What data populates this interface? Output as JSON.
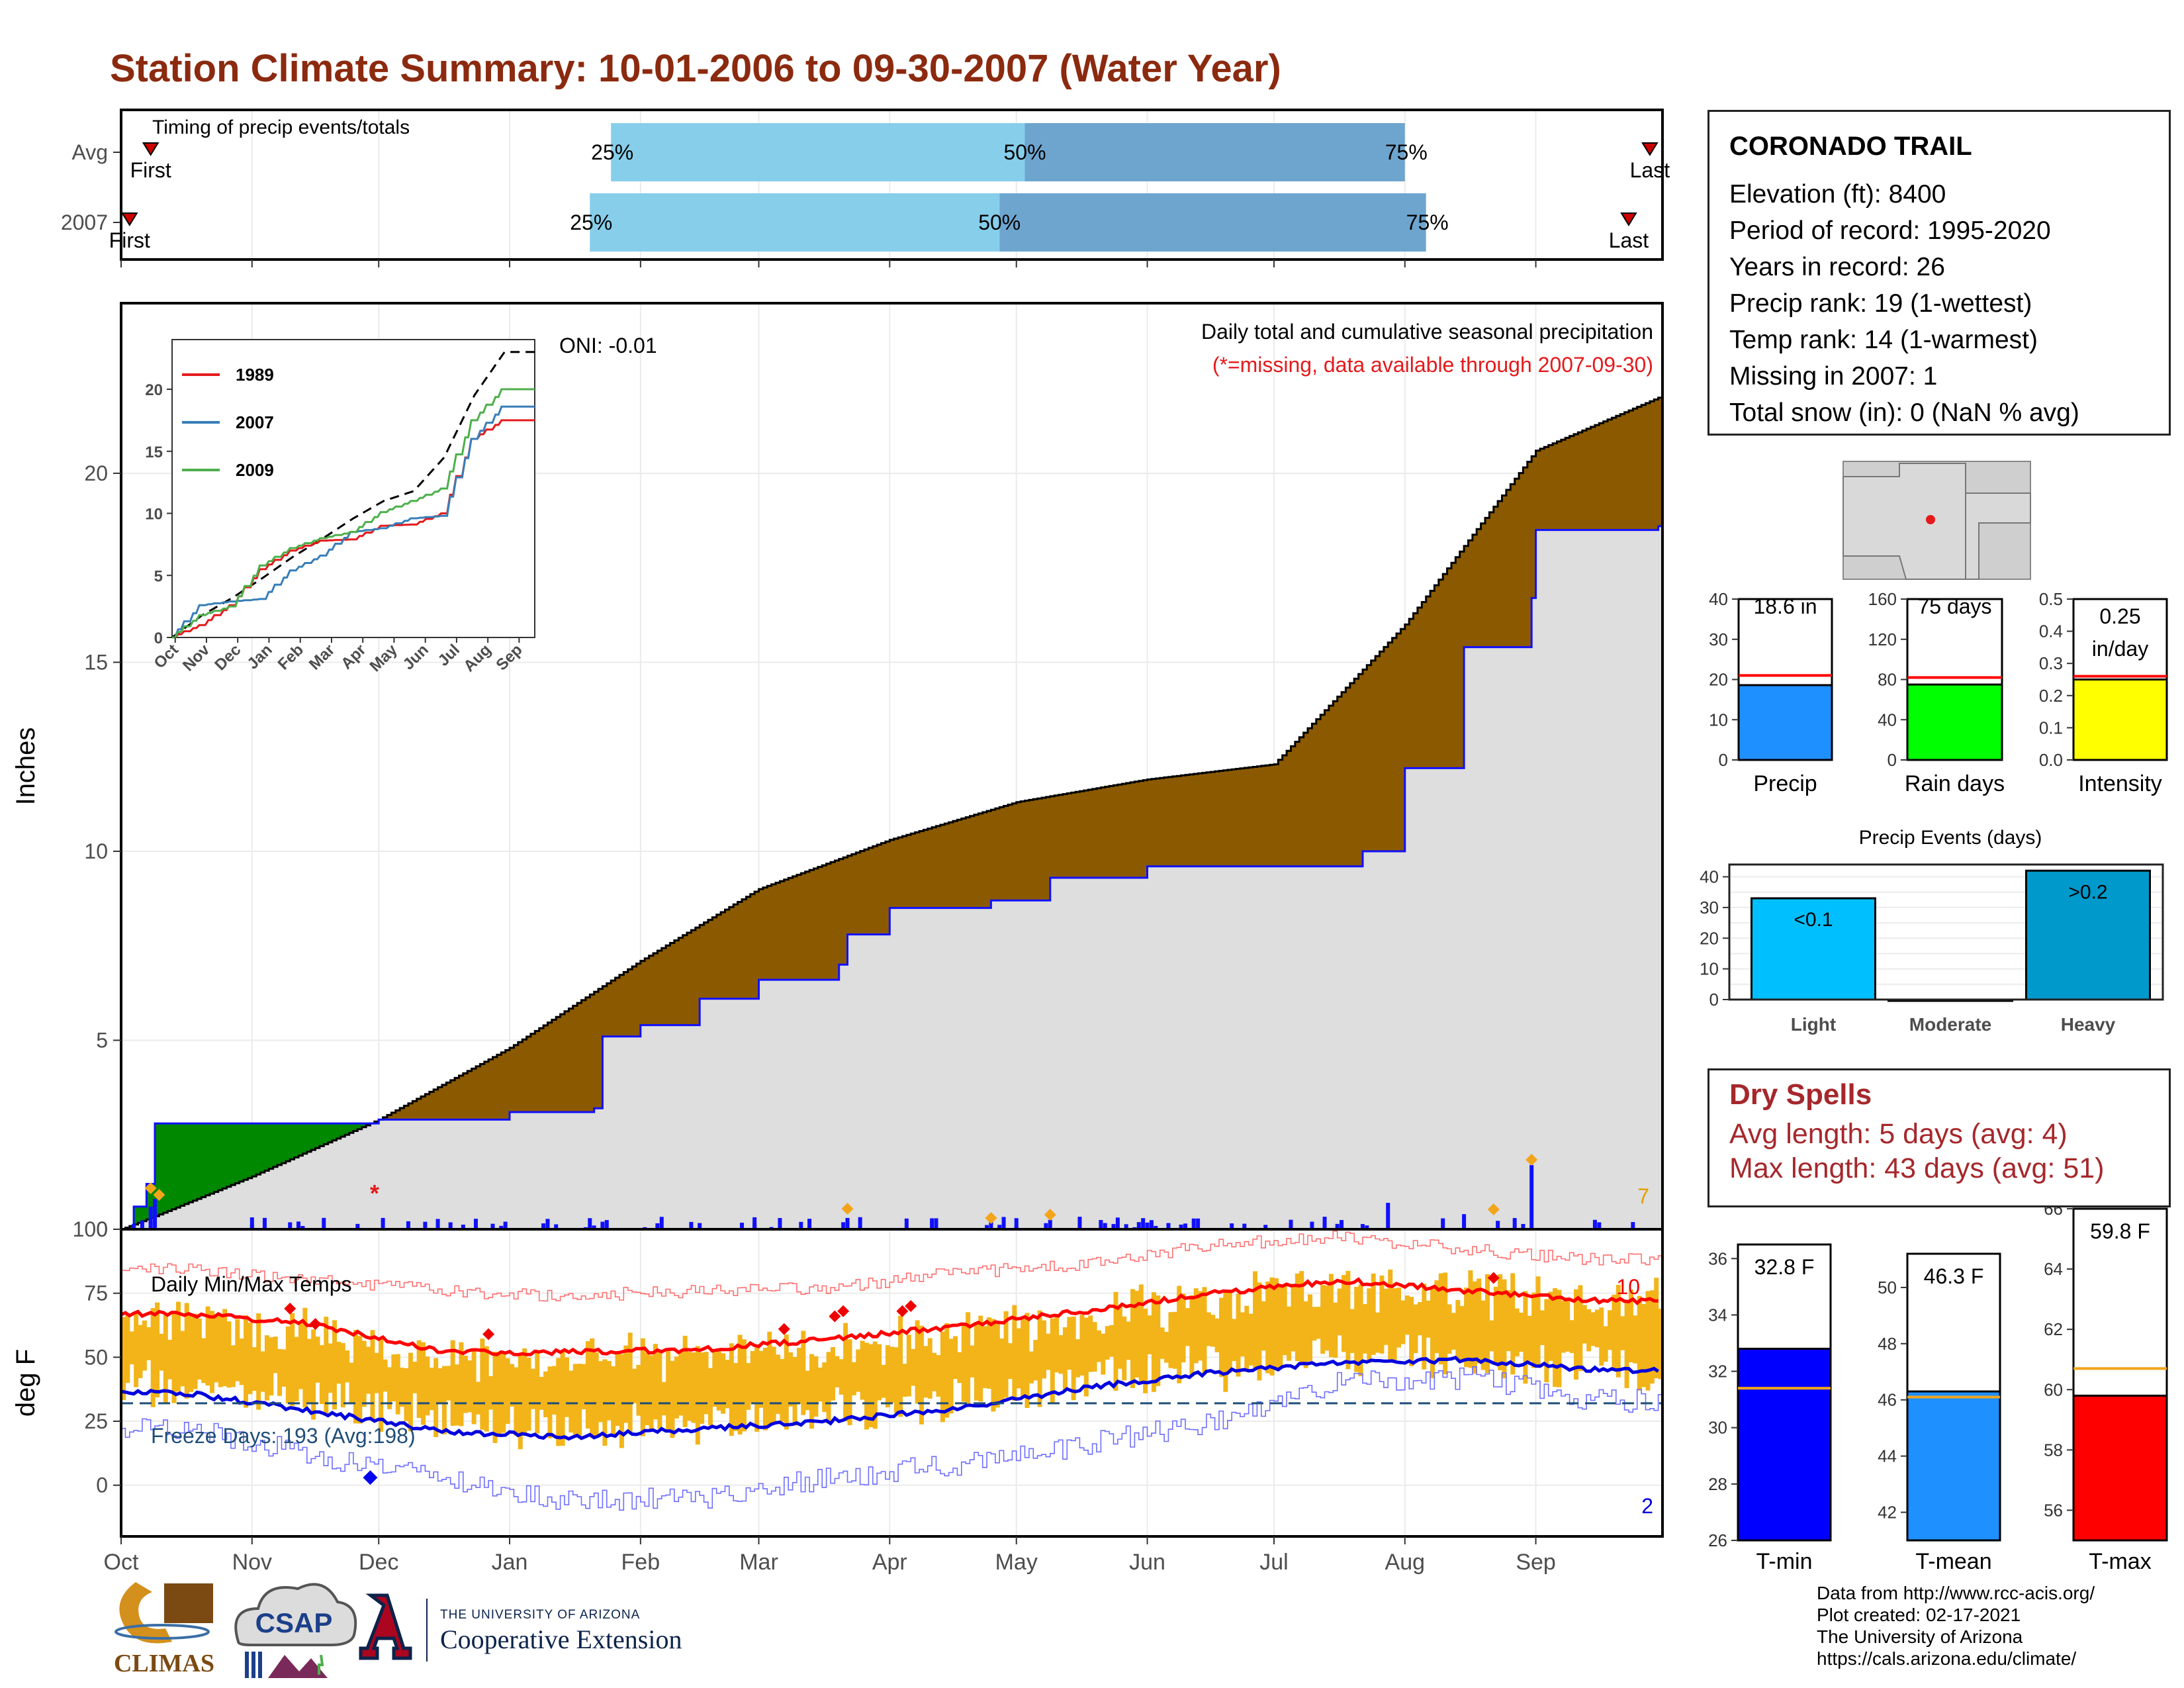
{
  "title": "Station Climate Summary: 10-01-2006 to 09-30-2007 (Water Year)",
  "timing": {
    "title": "Timing of precip events/totals",
    "rows": [
      {
        "label": "Avg",
        "first": "First",
        "last": "Last",
        "first_date": "2006-10-08",
        "last_date": "2007-09-28",
        "p25_date": "2007-01-25",
        "p50_date": "2007-05-03",
        "p75_date": "2007-08-01",
        "p25": "25%",
        "p50": "50%",
        "p75": "75%"
      },
      {
        "label": "2007",
        "first": "First",
        "last": "Last",
        "first_date": "2006-10-03",
        "last_date": "2007-09-23",
        "p25_date": "2007-01-20",
        "p50_date": "2007-04-27",
        "p75_date": "2007-08-06",
        "p25": "25%",
        "p50": "50%",
        "p75": "75%"
      }
    ]
  },
  "precip_panel": {
    "ylabel": "Inches",
    "title": "Daily total and cumulative seasonal precipitation",
    "subtitle": "(*=missing, data available through 2007-09-30)",
    "oni": "ONI: -0.01",
    "count_label": "7",
    "missing_marker": "*",
    "y_ticks": [
      "0",
      "5",
      "10",
      "15",
      "20"
    ]
  },
  "inset": {
    "series": [
      {
        "name": "1989",
        "color": "#e41a1c"
      },
      {
        "name": "2007",
        "color": "#377eb8"
      },
      {
        "name": "2009",
        "color": "#4daf4a"
      }
    ],
    "x_ticks": [
      "Oct",
      "Nov",
      "Dec",
      "Jan",
      "Feb",
      "Mar",
      "Apr",
      "May",
      "Jun",
      "Jul",
      "Aug",
      "Sep"
    ],
    "y_ticks": [
      "0",
      "5",
      "10",
      "15",
      "20"
    ]
  },
  "temp_panel": {
    "ylabel": "deg F",
    "title": "Daily Min/Max Temps",
    "freeze": "Freeze Days: 193 (Avg:198)",
    "count_high": "10",
    "count_low": "2",
    "y_ticks": [
      "0",
      "25",
      "50",
      "75",
      "100"
    ]
  },
  "x_months": [
    "Oct",
    "Nov",
    "Dec",
    "Jan",
    "Feb",
    "Mar",
    "Apr",
    "May",
    "Jun",
    "Jul",
    "Aug",
    "Sep"
  ],
  "station": {
    "name": "CORONADO TRAIL",
    "lines": [
      "Elevation (ft): 8400",
      "Period of record: 1995-2020",
      "Years in record: 26",
      "Precip rank: 19 (1-wettest)",
      "Temp rank: 14 (1-warmest)",
      "Missing in 2007: 1",
      "Total snow (in): 0 (NaN % avg)"
    ]
  },
  "summary_bars": [
    {
      "label": "Precip",
      "value": 18.6,
      "avg": 21,
      "text1": "18.6 in",
      "text2": "",
      "color": "#1e90ff",
      "ticks": [
        "0",
        "10",
        "20",
        "30",
        "40"
      ],
      "max": 40
    },
    {
      "label": "Rain days",
      "value": 75,
      "avg": 82,
      "text1": "75 days",
      "text2": "",
      "color": "#00ff00",
      "ticks": [
        "0",
        "40",
        "80",
        "120",
        "160"
      ],
      "max": 160
    },
    {
      "label": "Intensity",
      "value": 0.25,
      "avg": 0.26,
      "text1": "0.25",
      "text2": "in/day",
      "color": "#ffff00",
      "ticks": [
        "0.0",
        "0.1",
        "0.2",
        "0.3",
        "0.4",
        "0.5"
      ],
      "max": 0.5
    }
  ],
  "precip_events": {
    "title": "Precip Events (days)",
    "ticks": [
      "0",
      "10",
      "20",
      "30",
      "40"
    ],
    "bars": [
      {
        "label": "Light",
        "value": 33,
        "text": "<0.1",
        "color": "#00bfff"
      },
      {
        "label": "Moderate",
        "value": 0,
        "text": "",
        "color": "#1e90ff"
      },
      {
        "label": "Heavy",
        "value": 42,
        "text": ">0.2",
        "color": "#0099cc"
      }
    ]
  },
  "dry_spells": {
    "title": "Dry Spells",
    "avg": "Avg length: 5 days (avg: 4)",
    "max": "Max length: 43 days (avg: 51)"
  },
  "temp_bars": [
    {
      "label": "T-min",
      "value": 32.8,
      "avg": 31.4,
      "text": "32.8 F",
      "color": "#0000ff",
      "min": 26,
      "max": 36.5,
      "ticks": [
        "26",
        "28",
        "30",
        "32",
        "34",
        "36"
      ]
    },
    {
      "label": "T-mean",
      "value": 46.3,
      "avg": 46.1,
      "text": "46.3 F",
      "color": "#1e90ff",
      "min": 41,
      "max": 51.2,
      "ticks": [
        "42",
        "44",
        "46",
        "48",
        "50"
      ]
    },
    {
      "label": "T-max",
      "value": 59.8,
      "avg": 60.7,
      "text": "59.8 F",
      "color": "#ff0000",
      "min": 55,
      "max": 66,
      "ticks": [
        "56",
        "58",
        "60",
        "62",
        "64",
        "66"
      ]
    }
  ],
  "credits": [
    "Data from http://www.rcc-acis.org/",
    "Plot created: 02-17-2021",
    "The University of Arizona",
    "https://cals.arizona.edu/climate/"
  ],
  "logos": {
    "climas": "CLIMAS",
    "csap": "CSAP",
    "ua_small": "THE UNIVERSITY OF ARIZONA",
    "ua_big": "Cooperative Extension"
  },
  "chart_data": [
    {
      "type": "area",
      "title": "Daily total and cumulative seasonal precipitation",
      "ylabel": "Inches",
      "ylim": [
        0,
        24.5
      ],
      "x_unit": "month",
      "series": [
        {
          "name": "",
          "x": [
            "2006-10-01",
            "2006-10-08",
            "2006-11-01",
            "2006-12-01",
            "2007-01-01",
            "2007-02-01",
            "2007-03-01",
            "2007-04-01",
            "2007-05-01",
            "2007-06-01",
            "2007-07-01",
            "2007-08-01",
            "2007-09-01",
            "2007-09-30"
          ],
          "values": [
            0,
            0.3,
            1.4,
            2.9,
            4.8,
            7.1,
            9.0,
            10.3,
            11.3,
            11.9,
            12.3,
            16.0,
            20.6,
            22.0
          ]
        },
        {
          "name": "2007",
          "x": [
            "2006-10-01",
            "2006-10-04",
            "2006-10-07",
            "2006-10-09",
            "2006-12-01",
            "2007-01-01",
            "2007-01-21",
            "2007-01-23",
            "2007-02-01",
            "2007-02-15",
            "2007-03-01",
            "2007-03-20",
            "2007-03-22",
            "2007-04-01",
            "2007-04-25",
            "2007-05-09",
            "2007-06-01",
            "2007-07-01",
            "2007-07-22",
            "2007-08-01",
            "2007-08-15",
            "2007-08-31",
            "2007-09-01",
            "2007-09-30"
          ],
          "values": [
            0,
            0.6,
            1.2,
            2.8,
            2.9,
            3.1,
            3.2,
            5.1,
            5.4,
            6.1,
            6.6,
            7.0,
            7.8,
            8.5,
            8.7,
            9.3,
            9.6,
            9.6,
            10.0,
            12.2,
            15.4,
            16.7,
            18.5,
            18.6
          ]
        }
      ],
      "daily_precip": {
        "x": [
          "2006-10-08",
          "2006-10-09",
          "2007-01-21",
          "2007-01-23",
          "2007-03-22",
          "2007-07-10",
          "2007-07-28",
          "2007-08-15",
          "2007-08-31"
        ],
        "values": [
          0.6,
          0.8,
          0.1,
          0.2,
          0.3,
          0.2,
          0.7,
          0.4,
          1.7
        ]
      }
    },
    {
      "type": "line",
      "title": "",
      "x_unit": "month",
      "ylim": [
        0,
        24
      ],
      "categories": [
        "Oct",
        "Nov",
        "Dec",
        "Jan",
        "Feb",
        "Mar",
        "Apr",
        "May",
        "Jun",
        "Jul",
        "Aug",
        "Sep"
      ],
      "series": [
        {
          "name": "",
          "values": [
            0,
            1.8,
            3.2,
            4.8,
            6.5,
            8.0,
            9.6,
            11.0,
            11.8,
            14.5,
            19.5,
            23.0
          ]
        },
        {
          "name": "1989",
          "values": [
            0,
            1.0,
            2.6,
            5.5,
            7.0,
            7.8,
            7.9,
            9.0,
            9.1,
            10.0,
            16.0,
            17.5
          ]
        },
        {
          "name": "2007",
          "values": [
            0,
            2.6,
            2.9,
            3.1,
            5.4,
            6.6,
            8.5,
            8.8,
            9.6,
            9.8,
            16.0,
            18.6
          ]
        },
        {
          "name": "2009",
          "values": [
            0,
            1.8,
            2.5,
            5.8,
            7.2,
            8.0,
            8.5,
            10.1,
            11.0,
            12.0,
            17.5,
            20.0
          ]
        }
      ]
    },
    {
      "type": "line",
      "title": "Daily Min/Max Temps",
      "ylabel": "deg F",
      "ylim": [
        -20,
        100
      ],
      "categories": [
        "Oct",
        "Nov",
        "Dec",
        "Jan",
        "Feb",
        "Mar",
        "Apr",
        "May",
        "Jun",
        "Jul",
        "Aug",
        "Sep"
      ],
      "series": [
        {
          "name": "",
          "values": [
            67,
            63,
            52,
            52,
            53,
            57,
            62,
            68,
            75,
            80,
            76,
            72
          ]
        },
        {
          "name": "",
          "values": [
            36,
            29,
            21,
            19,
            22,
            25,
            30,
            38,
            44,
            48,
            49,
            45
          ]
        },
        {
          "name": "",
          "values": [
            85,
            80,
            76,
            74,
            76,
            77,
            83,
            86,
            94,
            97,
            92,
            88
          ]
        },
        {
          "name": "",
          "values": [
            22,
            12,
            2,
            -6,
            -5,
            3,
            8,
            16,
            25,
            40,
            42,
            33
          ]
        },
        {
          "name": "",
          "values": [
            32,
            32,
            32,
            32,
            32,
            32,
            32,
            32,
            32,
            32,
            32,
            32
          ]
        }
      ]
    }
  ]
}
